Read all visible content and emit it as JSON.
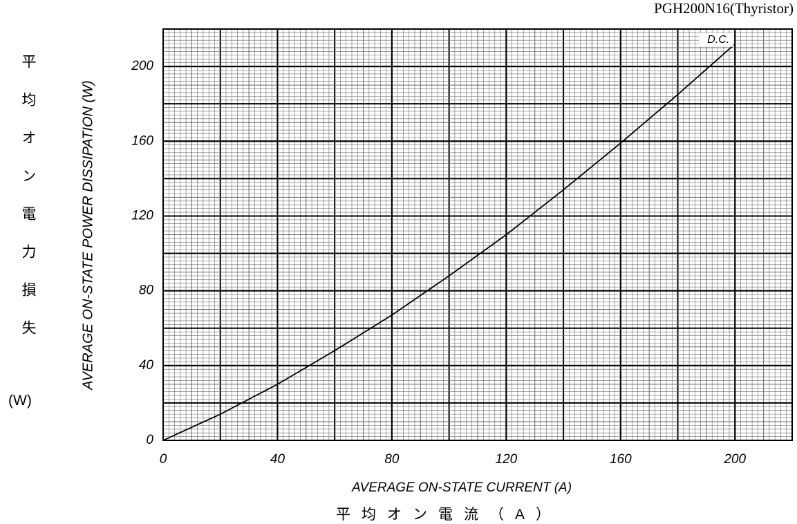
{
  "chart_data": {
    "type": "line",
    "title": "PGH200N16(Thyristor)",
    "xlabel": "AVERAGE ON-STATE CURRENT (A)",
    "xlabel_jp": "平均オン電流（A）",
    "ylabel": "AVERAGE ON-STATE POWER DISSIPATION (W)",
    "ylabel_jp": "平均オン電力損失",
    "ylabel_jp_unit": "(W)",
    "x": [
      0,
      20,
      40,
      60,
      80,
      100,
      120,
      140,
      160,
      180,
      200
    ],
    "series": [
      {
        "name": "D.C.",
        "color": "#000000",
        "values": [
          0,
          14,
          30,
          48,
          67,
          88,
          110,
          134,
          159,
          185,
          212
        ]
      }
    ],
    "xlim": [
      0,
      220
    ],
    "ylim": [
      0,
      220
    ],
    "xticks": [
      0,
      40,
      80,
      120,
      160,
      200
    ],
    "yticks": [
      0,
      40,
      80,
      120,
      160,
      200
    ],
    "grid": {
      "major": 20,
      "minor": 2
    }
  }
}
